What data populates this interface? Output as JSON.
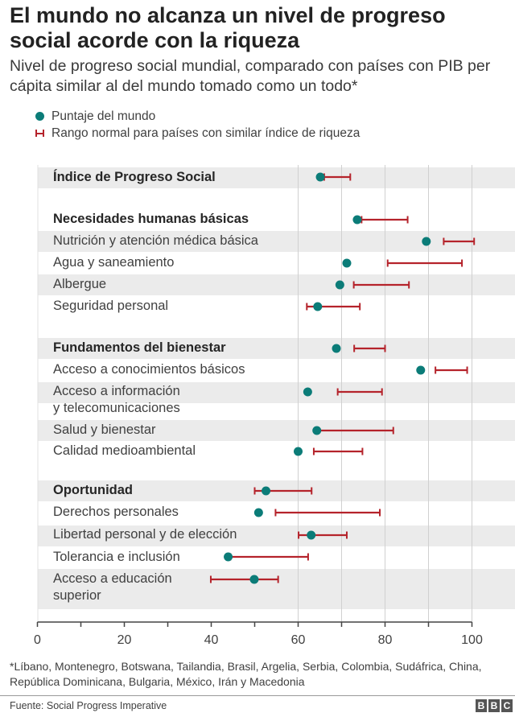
{
  "title": "El mundo no alcanza un nivel de progreso social acorde con la riqueza",
  "subtitle": "Nivel de progreso social mundial, comparado con países con PIB per cápita similar al del mundo tomado como un todo*",
  "legend": {
    "world_score": "Puntaje del mundo",
    "normal_range": "Rango normal para países con similar índice de riqueza"
  },
  "colors": {
    "world_score": "#0b7c78",
    "normal_range": "#b5232b",
    "band": "#ebebeb"
  },
  "chart_data": {
    "type": "dot-range",
    "xlim": [
      0,
      100
    ],
    "x_ticks": [
      "0",
      "20",
      "40",
      "60",
      "80",
      "100"
    ],
    "grid": "vertical lines at 60, 70, 80, 90, 100",
    "legend_position": "top-left",
    "rows": [
      {
        "label": "Índice de Progreso Social",
        "bold": true,
        "world": 65.1,
        "range": [
          66,
          72
        ]
      },
      {
        "label": "Necesidades humanas básicas",
        "bold": true,
        "world": 73.6,
        "range": [
          74.6,
          85.2
        ]
      },
      {
        "label": "Nutrición y atención médica básica",
        "bold": false,
        "world": 89.5,
        "range": [
          93.5,
          100.5
        ]
      },
      {
        "label": "Agua y saneamiento",
        "bold": false,
        "world": 71.2,
        "range": [
          80.6,
          97.7
        ]
      },
      {
        "label": "Albergue",
        "bold": false,
        "world": 69.6,
        "range": [
          72.8,
          85.5
        ]
      },
      {
        "label": "Seguridad personal",
        "bold": false,
        "world": 64.5,
        "range": [
          62,
          74.2
        ]
      },
      {
        "label": "Fundamentos del bienestar",
        "bold": true,
        "world": 68.8,
        "range": [
          72.9,
          80
        ]
      },
      {
        "label": "Acceso a conocimientos básicos",
        "bold": false,
        "world": 88.2,
        "range": [
          91.6,
          98.9
        ]
      },
      {
        "label": "Acceso a información\ny telecomunicaciones",
        "bold": false,
        "world": 62.2,
        "range": [
          69.1,
          79.3
        ]
      },
      {
        "label": "Salud y bienestar",
        "bold": false,
        "world": 64.3,
        "range": [
          64.5,
          81.9
        ]
      },
      {
        "label": "Calidad medioambiental",
        "bold": false,
        "world": 60,
        "range": [
          63.6,
          74.8
        ]
      },
      {
        "label": "Oportunidad",
        "bold": true,
        "world": 52.6,
        "range": [
          50,
          63.1
        ]
      },
      {
        "label": "Derechos personales",
        "bold": false,
        "world": 50.9,
        "range": [
          54.8,
          78.8
        ]
      },
      {
        "label": "Libertad personal y de elección",
        "bold": false,
        "world": 63,
        "range": [
          60.1,
          71.2
        ]
      },
      {
        "label": "Tolerancia e inclusión",
        "bold": false,
        "world": 43.9,
        "range": [
          44.4,
          62.3
        ]
      },
      {
        "label": "Acceso a educación\nsuperior",
        "bold": false,
        "world": 49.9,
        "range": [
          39.9,
          55.4
        ]
      }
    ]
  },
  "footnote": "*Líbano, Montenegro, Botswana, Tailandia, Brasil, Argelia, Serbia, Colombia, Sudáfrica, China, República Dominicana, Bulgaria, México, Irán y Macedonia",
  "source": "Fuente: Social Progress Imperative",
  "logo": "BBC"
}
